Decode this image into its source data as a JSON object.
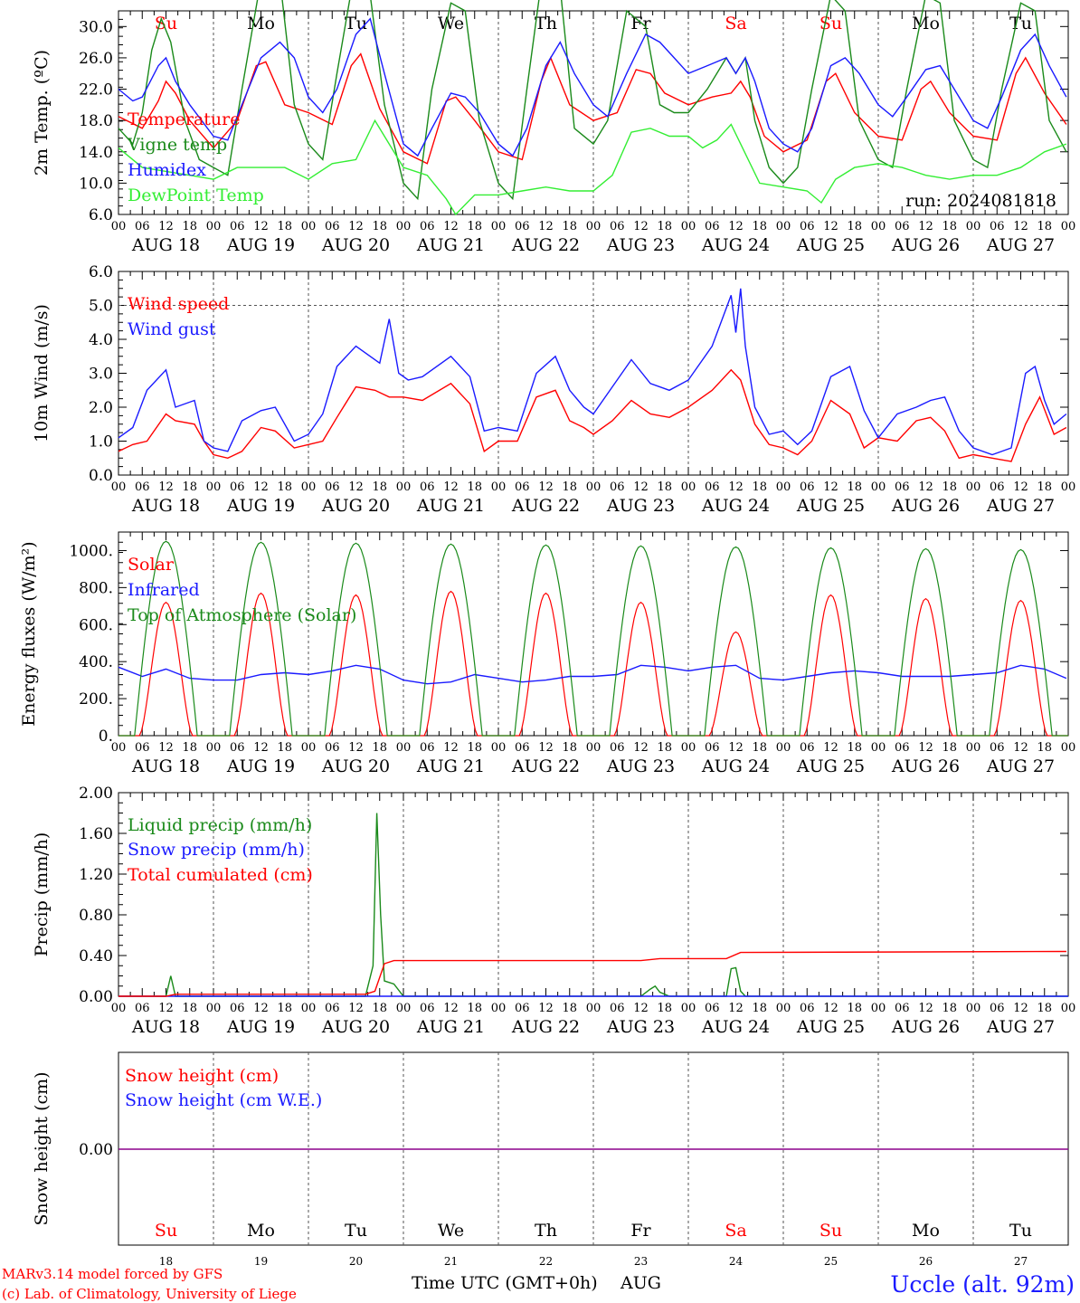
{
  "days": {
    "names": [
      "Su",
      "Mo",
      "Tu",
      "We",
      "Th",
      "Fr",
      "Sa",
      "Su",
      "Mo",
      "Tu"
    ],
    "weekend": [
      true,
      false,
      false,
      false,
      false,
      false,
      true,
      true,
      false,
      false
    ],
    "dates": [
      "AUG 18",
      "AUG 19",
      "AUG 20",
      "AUG 21",
      "AUG 22",
      "AUG 23",
      "AUG 24",
      "AUG 25",
      "AUG 26",
      "AUG 27"
    ],
    "day_numbers": [
      "18",
      "19",
      "20",
      "21",
      "22",
      "23",
      "24",
      "25",
      "26",
      "27"
    ],
    "hour_ticks": [
      "00",
      "06",
      "12",
      "18"
    ]
  },
  "colors": {
    "red": "#ff0000",
    "green": "#1a8a1a",
    "blue": "#1a1aff",
    "lightgreen": "#33ee33",
    "purple": "#8b008b",
    "weekend": "#ff0000"
  },
  "run_label": "run: 2024081818",
  "x_title": "Time UTC (GMT+0h)",
  "x_month": "AUG",
  "footer": {
    "model": "MARv3.14 model forced by GFS",
    "lab": "(c) Lab. of Climatology, University of Liege",
    "station": "Uccle (alt. 92m)"
  },
  "chart_data": [
    {
      "type": "line",
      "ylabel": "2m Temp. (ºC)",
      "ylim": [
        6,
        32
      ],
      "yticks": [
        "6.0",
        "10.0",
        "14.0",
        "18.0",
        "22.0",
        "26.0",
        "30.0"
      ],
      "x_unit": "days since AUG 18 00 UTC",
      "series": [
        {
          "name": "Temperature",
          "color": "red",
          "x": [
            0,
            0.25,
            0.42,
            0.5,
            0.6,
            0.75,
            1,
            1.25,
            1.45,
            1.55,
            1.75,
            2,
            2.25,
            2.45,
            2.55,
            2.75,
            3,
            3.25,
            3.45,
            3.55,
            3.75,
            4,
            4.25,
            4.45,
            4.55,
            4.75,
            5,
            5.25,
            5.45,
            5.6,
            5.75,
            6,
            6.25,
            6.45,
            6.55,
            6.65,
            6.8,
            7,
            7.25,
            7.45,
            7.55,
            7.75,
            8,
            8.25,
            8.45,
            8.55,
            8.75,
            9,
            9.25,
            9.45,
            9.55,
            9.75,
            9.98
          ],
          "y": [
            18.5,
            17,
            20.5,
            23,
            21.5,
            18,
            14.5,
            18,
            25,
            25.5,
            20,
            19,
            17.5,
            25,
            26.5,
            19.5,
            14,
            12.5,
            20.5,
            21,
            18,
            14,
            13,
            23,
            26,
            20,
            18,
            19,
            24.5,
            24,
            21.5,
            20,
            21,
            21.5,
            23,
            21,
            16,
            14,
            15.5,
            23,
            24,
            19,
            16,
            15.5,
            22,
            23,
            19,
            16,
            15.5,
            24,
            26,
            21.5,
            17.5
          ]
        },
        {
          "name": "Vigne temp",
          "color": "green",
          "x": [
            0,
            0.15,
            0.25,
            0.35,
            0.45,
            0.55,
            0.7,
            0.85,
            1,
            1.15,
            1.3,
            1.5,
            1.7,
            1.85,
            2,
            2.15,
            2.3,
            2.5,
            2.65,
            2.8,
            3,
            3.15,
            3.3,
            3.5,
            3.65,
            3.8,
            4,
            4.15,
            4.3,
            4.5,
            4.65,
            4.8,
            5,
            5.15,
            5.35,
            5.55,
            5.7,
            5.85,
            6,
            6.2,
            6.4,
            6.5,
            6.6,
            6.7,
            6.85,
            7,
            7.15,
            7.3,
            7.5,
            7.65,
            7.8,
            8,
            8.15,
            8.3,
            8.5,
            8.65,
            8.8,
            9,
            9.15,
            9.3,
            9.5,
            9.65,
            9.8,
            9.98
          ],
          "y": [
            17,
            15,
            19,
            27,
            31,
            28,
            18,
            13,
            12,
            11,
            22,
            36,
            36,
            20,
            15,
            13,
            24,
            38,
            34,
            20,
            10,
            8,
            22,
            33,
            32,
            18,
            10,
            8,
            22,
            40,
            35,
            17,
            15,
            18,
            32,
            30,
            20,
            19,
            19,
            22,
            26,
            24,
            26,
            18,
            12,
            10,
            12,
            22,
            34,
            32,
            18,
            13,
            12,
            22,
            34,
            33,
            18,
            13,
            12,
            22,
            33,
            32,
            18,
            14
          ]
        },
        {
          "name": "Humidex",
          "color": "blue",
          "x": [
            0,
            0.15,
            0.25,
            0.42,
            0.5,
            0.6,
            0.75,
            1,
            1.15,
            1.3,
            1.5,
            1.7,
            1.85,
            2,
            2.15,
            2.3,
            2.5,
            2.65,
            2.8,
            3,
            3.15,
            3.3,
            3.5,
            3.65,
            3.8,
            4,
            4.15,
            4.3,
            4.5,
            4.65,
            4.8,
            5,
            5.15,
            5.35,
            5.55,
            5.7,
            5.85,
            6,
            6.2,
            6.4,
            6.5,
            6.6,
            6.7,
            6.85,
            7,
            7.15,
            7.3,
            7.5,
            7.65,
            7.8,
            8,
            8.15,
            8.3,
            8.5,
            8.65,
            8.8,
            9,
            9.15,
            9.3,
            9.5,
            9.65,
            9.8,
            9.98
          ],
          "y": [
            22,
            20.5,
            21,
            25,
            26,
            23,
            20,
            16,
            15.5,
            20,
            26,
            28,
            26,
            21,
            19,
            22,
            29,
            31,
            24,
            15,
            13.5,
            17,
            21.5,
            21,
            19,
            15,
            13.5,
            17,
            25,
            28,
            24,
            20,
            18.5,
            24,
            29,
            28,
            26,
            24,
            25,
            26,
            24,
            26,
            23,
            17,
            15,
            14,
            17,
            25,
            26,
            24,
            20,
            18.5,
            21,
            24.5,
            25,
            22,
            18,
            17,
            21,
            27,
            29,
            25,
            21
          ]
        },
        {
          "name": "DewPoint Temp",
          "color": "lightgreen",
          "x": [
            0,
            0.25,
            0.5,
            0.75,
            1,
            1.25,
            1.5,
            1.75,
            2,
            2.25,
            2.5,
            2.7,
            2.9,
            3,
            3.25,
            3.45,
            3.55,
            3.75,
            4,
            4.25,
            4.5,
            4.75,
            5,
            5.2,
            5.4,
            5.6,
            5.8,
            6,
            6.15,
            6.3,
            6.45,
            6.55,
            6.75,
            7,
            7.25,
            7.4,
            7.55,
            7.75,
            8,
            8.25,
            8.5,
            8.75,
            9,
            9.25,
            9.5,
            9.75,
            9.98
          ],
          "y": [
            14.5,
            12,
            11.5,
            11,
            10.5,
            12,
            12,
            12,
            10.5,
            12.5,
            13,
            18,
            14,
            12,
            11,
            8,
            6,
            8.5,
            8.5,
            9,
            9.5,
            9,
            9,
            11,
            16.5,
            17,
            16,
            16,
            14.5,
            15.5,
            17.5,
            15,
            10,
            9.5,
            9,
            7.5,
            10.5,
            12,
            12.5,
            12,
            11,
            10.5,
            11,
            11,
            12,
            14,
            15
          ]
        }
      ]
    },
    {
      "type": "line",
      "ylabel": "10m Wind (m/s)",
      "ylim": [
        0,
        6
      ],
      "yticks": [
        "0.0",
        "1.0",
        "2.0",
        "3.0",
        "4.0",
        "5.0",
        "6.0"
      ],
      "x_unit": "days since AUG 18 00 UTC",
      "series": [
        {
          "name": "Wind speed",
          "color": "red",
          "x": [
            0,
            0.15,
            0.3,
            0.5,
            0.6,
            0.8,
            0.9,
            1,
            1.15,
            1.3,
            1.5,
            1.65,
            1.85,
            2,
            2.15,
            2.3,
            2.5,
            2.7,
            2.85,
            3,
            3.2,
            3.5,
            3.7,
            3.85,
            4,
            4.2,
            4.4,
            4.6,
            4.75,
            4.9,
            5,
            5.2,
            5.4,
            5.6,
            5.8,
            6,
            6.25,
            6.45,
            6.55,
            6.7,
            6.85,
            7,
            7.15,
            7.3,
            7.5,
            7.7,
            7.85,
            8,
            8.2,
            8.4,
            8.55,
            8.7,
            8.85,
            9,
            9.2,
            9.4,
            9.55,
            9.7,
            9.85,
            9.98
          ],
          "y": [
            0.7,
            0.9,
            1.0,
            1.8,
            1.6,
            1.5,
            1.0,
            0.6,
            0.5,
            0.7,
            1.4,
            1.3,
            0.8,
            0.9,
            1.0,
            1.7,
            2.6,
            2.5,
            2.3,
            2.3,
            2.2,
            2.7,
            2.1,
            0.7,
            1.0,
            1.0,
            2.3,
            2.5,
            1.6,
            1.4,
            1.2,
            1.6,
            2.2,
            1.8,
            1.7,
            2.0,
            2.5,
            3.1,
            2.8,
            1.5,
            0.9,
            0.8,
            0.6,
            1.0,
            2.2,
            1.8,
            0.8,
            1.1,
            1.0,
            1.6,
            1.7,
            1.3,
            0.5,
            0.6,
            0.5,
            0.4,
            1.5,
            2.3,
            1.2,
            1.4
          ]
        },
        {
          "name": "Wind gust",
          "color": "blue",
          "x": [
            0,
            0.15,
            0.3,
            0.5,
            0.6,
            0.8,
            0.9,
            1,
            1.15,
            1.3,
            1.5,
            1.65,
            1.85,
            2,
            2.15,
            2.3,
            2.5,
            2.75,
            2.85,
            2.95,
            3.05,
            3.2,
            3.5,
            3.7,
            3.85,
            4,
            4.2,
            4.4,
            4.6,
            4.75,
            4.9,
            5,
            5.2,
            5.4,
            5.6,
            5.8,
            6,
            6.25,
            6.45,
            6.5,
            6.55,
            6.6,
            6.7,
            6.85,
            7,
            7.15,
            7.3,
            7.5,
            7.7,
            7.85,
            8,
            8.2,
            8.4,
            8.55,
            8.7,
            8.85,
            9,
            9.2,
            9.4,
            9.55,
            9.65,
            9.75,
            9.85,
            9.98
          ],
          "y": [
            1.1,
            1.4,
            2.5,
            3.1,
            2.0,
            2.2,
            1.0,
            0.8,
            0.7,
            1.6,
            1.9,
            2.0,
            1.0,
            1.2,
            1.8,
            3.2,
            3.8,
            3.3,
            4.6,
            3.0,
            2.8,
            2.9,
            3.5,
            2.9,
            1.3,
            1.4,
            1.3,
            3.0,
            3.5,
            2.5,
            2.0,
            1.8,
            2.6,
            3.4,
            2.7,
            2.5,
            2.8,
            3.8,
            5.3,
            4.2,
            5.5,
            3.8,
            2.0,
            1.2,
            1.3,
            0.9,
            1.3,
            2.9,
            3.2,
            1.9,
            1.1,
            1.8,
            2.0,
            2.2,
            2.3,
            1.3,
            0.8,
            0.6,
            0.8,
            3.0,
            3.2,
            2.2,
            1.5,
            1.8
          ]
        }
      ]
    },
    {
      "type": "line",
      "ylabel": "Energy fluxes (W/m²)",
      "ylim": [
        0,
        1100
      ],
      "yticks": [
        "0.",
        "200.",
        "400.",
        "600.",
        "800.",
        "1000."
      ],
      "x_unit": "days since AUG 18 00 UTC",
      "series": [
        {
          "name": "Solar",
          "color": "red",
          "peak": [
            720,
            770,
            760,
            780,
            770,
            720,
            560,
            760,
            740,
            730
          ]
        },
        {
          "name": "Infrared",
          "color": "blue",
          "x": [
            0,
            0.25,
            0.5,
            0.75,
            1,
            1.25,
            1.5,
            1.75,
            2,
            2.25,
            2.5,
            2.75,
            3,
            3.25,
            3.5,
            3.75,
            4,
            4.25,
            4.5,
            4.75,
            5,
            5.25,
            5.5,
            5.75,
            6,
            6.25,
            6.5,
            6.75,
            7,
            7.25,
            7.5,
            7.75,
            8,
            8.25,
            8.5,
            8.75,
            9,
            9.25,
            9.5,
            9.75,
            9.98
          ],
          "y": [
            370,
            320,
            360,
            310,
            300,
            300,
            330,
            340,
            330,
            350,
            380,
            360,
            300,
            280,
            290,
            330,
            310,
            290,
            300,
            320,
            320,
            330,
            380,
            370,
            350,
            370,
            380,
            310,
            300,
            320,
            340,
            350,
            340,
            320,
            320,
            320,
            330,
            340,
            380,
            360,
            310
          ]
        },
        {
          "name": "Top of Atmosphere (Solar)",
          "color": "green",
          "peak": [
            1050,
            1045,
            1040,
            1035,
            1030,
            1025,
            1020,
            1015,
            1010,
            1005
          ]
        }
      ]
    },
    {
      "type": "line",
      "ylabel": "Precip (mm/h)",
      "ylim": [
        0,
        2
      ],
      "yticks": [
        "0.00",
        "0.40",
        "0.80",
        "1.20",
        "1.60",
        "2.00"
      ],
      "x_unit": "days since AUG 18 00 UTC",
      "series": [
        {
          "name": "Liquid precip (mm/h)",
          "color": "green",
          "x": [
            0,
            0.5,
            0.55,
            0.6,
            0.65,
            2.6,
            2.68,
            2.72,
            2.76,
            2.8,
            2.9,
            3.0,
            3.1,
            5.5,
            5.6,
            5.65,
            5.7,
            5.8,
            6.4,
            6.45,
            6.5,
            6.55,
            6.6,
            10
          ],
          "y": [
            0,
            0,
            0.2,
            0,
            0,
            0,
            0.3,
            1.8,
            0.8,
            0.15,
            0.12,
            0,
            0,
            0,
            0.07,
            0.1,
            0.04,
            0,
            0,
            0.27,
            0.28,
            0.05,
            0,
            0
          ]
        },
        {
          "name": "Snow precip (mm/h)",
          "color": "blue",
          "x": [
            0,
            10
          ],
          "y": [
            0,
            0
          ]
        },
        {
          "name": "Total cumulated (cm)",
          "color": "red",
          "x": [
            0,
            0.5,
            0.6,
            2.6,
            2.7,
            2.8,
            2.9,
            5.5,
            5.7,
            6.4,
            6.55,
            9.98
          ],
          "y": [
            0,
            0,
            0.02,
            0.02,
            0.05,
            0.32,
            0.35,
            0.35,
            0.37,
            0.37,
            0.43,
            0.44
          ]
        }
      ]
    },
    {
      "type": "line",
      "ylabel": "Snow height (cm)",
      "yticks": [
        "0.00"
      ],
      "series": [
        {
          "name": "Snow height (cm)",
          "color": "red",
          "value": 0
        },
        {
          "name": "Snow height (cm W.E.)",
          "color": "blue",
          "value": 0
        }
      ]
    }
  ]
}
